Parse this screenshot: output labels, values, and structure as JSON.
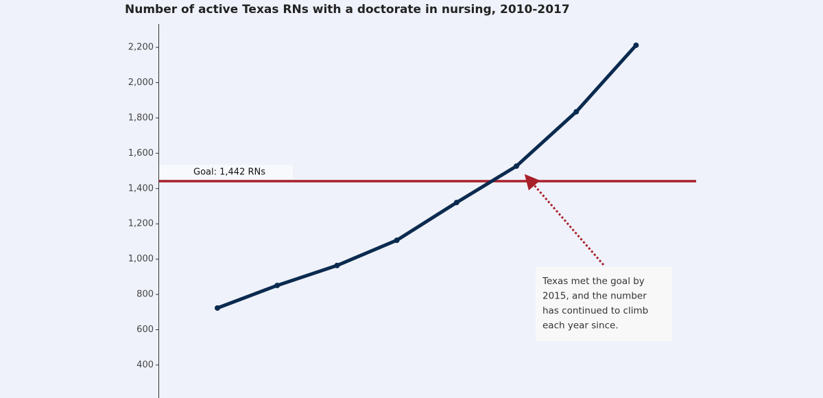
{
  "chart_data": {
    "type": "line",
    "title": "Number of active Texas RNs with a doctorate in nursing, 2010-2017",
    "categories": [
      null,
      null,
      null,
      null,
      null,
      null,
      null,
      null
    ],
    "series": [
      {
        "name": null,
        "color": "#0b2a4f",
        "values": [
          723,
          851,
          964,
          1107,
          1321,
          1527,
          1835,
          2212
        ]
      }
    ],
    "ylim": [
      250,
      2330
    ],
    "yticks": [
      400,
      600,
      800,
      {
        "value": 1000,
        "label": "1,000"
      },
      {
        "value": 1200,
        "label": "1,200"
      },
      {
        "value": 1400,
        "label": "1,400"
      },
      {
        "value": 1600,
        "label": "1,600"
      },
      {
        "value": 1800,
        "label": "1,800"
      },
      {
        "value": 2000,
        "label": "2,000"
      },
      {
        "value": 2200,
        "label": "2,200"
      }
    ],
    "grid": false,
    "reference_line": {
      "value": 1442,
      "label": "Goal: 1,442 RNs",
      "color": "#a8202a"
    },
    "annotation": {
      "lines": [
        "Texas met the goal by",
        "2015, and the number",
        "has continued to climb",
        "each year since."
      ]
    }
  }
}
